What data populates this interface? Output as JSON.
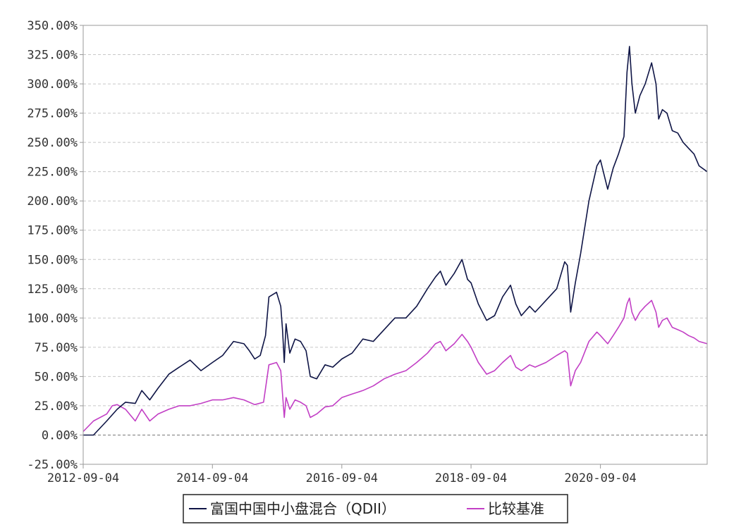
{
  "chart_data": {
    "type": "line",
    "y_ticks": [
      "-25.00%",
      "0.00%",
      "25.00%",
      "50.00%",
      "75.00%",
      "100.00%",
      "125.00%",
      "150.00%",
      "175.00%",
      "200.00%",
      "225.00%",
      "250.00%",
      "275.00%",
      "300.00%",
      "325.00%",
      "350.00%"
    ],
    "x_ticks": [
      "2012-09-04",
      "2014-09-04",
      "2016-09-04",
      "2018-09-04",
      "2020-09-04"
    ],
    "ylim": [
      -25,
      350
    ],
    "xlim": [
      "2012-09-04",
      "2022-04-30"
    ],
    "grid": "horizontal-dashed",
    "legend_position": "bottom",
    "series": [
      {
        "name": "富国中国中小盘混合（QDII）",
        "color": "#0f1546",
        "points": [
          [
            "2012-09-04",
            0
          ],
          [
            "2012-11-01",
            0
          ],
          [
            "2013-01-15",
            12
          ],
          [
            "2013-03-15",
            22
          ],
          [
            "2013-05-01",
            28
          ],
          [
            "2013-06-25",
            27
          ],
          [
            "2013-08-01",
            38
          ],
          [
            "2013-09-15",
            30
          ],
          [
            "2013-11-01",
            40
          ],
          [
            "2014-01-01",
            52
          ],
          [
            "2014-03-01",
            58
          ],
          [
            "2014-05-01",
            64
          ],
          [
            "2014-07-01",
            55
          ],
          [
            "2014-09-04",
            62
          ],
          [
            "2014-11-01",
            68
          ],
          [
            "2015-01-01",
            80
          ],
          [
            "2015-03-01",
            78
          ],
          [
            "2015-04-01",
            72
          ],
          [
            "2015-05-01",
            65
          ],
          [
            "2015-06-01",
            68
          ],
          [
            "2015-07-01",
            85
          ],
          [
            "2015-07-20",
            118
          ],
          [
            "2015-09-01",
            122
          ],
          [
            "2015-09-25",
            110
          ],
          [
            "2015-10-05",
            90
          ],
          [
            "2015-10-15",
            62
          ],
          [
            "2015-10-25",
            95
          ],
          [
            "2015-11-15",
            70
          ],
          [
            "2015-12-15",
            82
          ],
          [
            "2016-01-15",
            80
          ],
          [
            "2016-02-15",
            72
          ],
          [
            "2016-03-10",
            50
          ],
          [
            "2016-04-15",
            48
          ],
          [
            "2016-06-01",
            60
          ],
          [
            "2016-07-15",
            58
          ],
          [
            "2016-09-04",
            65
          ],
          [
            "2016-11-01",
            70
          ],
          [
            "2017-01-01",
            82
          ],
          [
            "2017-03-01",
            80
          ],
          [
            "2017-05-01",
            90
          ],
          [
            "2017-07-01",
            100
          ],
          [
            "2017-09-01",
            100
          ],
          [
            "2017-11-01",
            110
          ],
          [
            "2018-01-01",
            125
          ],
          [
            "2018-02-15",
            135
          ],
          [
            "2018-03-15",
            140
          ],
          [
            "2018-04-15",
            128
          ],
          [
            "2018-06-01",
            138
          ],
          [
            "2018-07-15",
            150
          ],
          [
            "2018-08-15",
            133
          ],
          [
            "2018-09-04",
            130
          ],
          [
            "2018-10-15",
            112
          ],
          [
            "2018-12-01",
            98
          ],
          [
            "2019-01-15",
            102
          ],
          [
            "2019-03-01",
            118
          ],
          [
            "2019-04-15",
            128
          ],
          [
            "2019-05-15",
            112
          ],
          [
            "2019-06-15",
            102
          ],
          [
            "2019-08-01",
            110
          ],
          [
            "2019-09-01",
            105
          ],
          [
            "2019-11-01",
            115
          ],
          [
            "2020-01-01",
            125
          ],
          [
            "2020-02-15",
            148
          ],
          [
            "2020-03-01",
            145
          ],
          [
            "2020-03-20",
            105
          ],
          [
            "2020-04-15",
            130
          ],
          [
            "2020-05-15",
            155
          ],
          [
            "2020-07-01",
            200
          ],
          [
            "2020-08-15",
            230
          ],
          [
            "2020-09-04",
            235
          ],
          [
            "2020-10-15",
            210
          ],
          [
            "2020-11-15",
            228
          ],
          [
            "2020-12-15",
            240
          ],
          [
            "2021-01-15",
            255
          ],
          [
            "2021-02-01",
            310
          ],
          [
            "2021-02-15",
            332
          ],
          [
            "2021-03-01",
            300
          ],
          [
            "2021-03-20",
            275
          ],
          [
            "2021-04-15",
            290
          ],
          [
            "2021-05-15",
            300
          ],
          [
            "2021-06-20",
            318
          ],
          [
            "2021-07-15",
            300
          ],
          [
            "2021-07-30",
            270
          ],
          [
            "2021-08-20",
            278
          ],
          [
            "2021-09-15",
            275
          ],
          [
            "2021-10-15",
            260
          ],
          [
            "2021-11-15",
            258
          ],
          [
            "2021-12-15",
            250
          ],
          [
            "2022-01-15",
            245
          ],
          [
            "2022-02-15",
            240
          ],
          [
            "2022-03-15",
            230
          ],
          [
            "2022-04-30",
            225
          ]
        ]
      },
      {
        "name": "比较基准",
        "color": "#c23fc5",
        "points": [
          [
            "2012-09-04",
            3
          ],
          [
            "2012-11-01",
            12
          ],
          [
            "2013-01-15",
            18
          ],
          [
            "2013-02-15",
            25
          ],
          [
            "2013-03-15",
            26
          ],
          [
            "2013-05-01",
            22
          ],
          [
            "2013-06-25",
            12
          ],
          [
            "2013-08-01",
            22
          ],
          [
            "2013-09-15",
            12
          ],
          [
            "2013-11-01",
            18
          ],
          [
            "2014-01-01",
            22
          ],
          [
            "2014-03-01",
            25
          ],
          [
            "2014-05-01",
            25
          ],
          [
            "2014-07-01",
            27
          ],
          [
            "2014-09-04",
            30
          ],
          [
            "2014-11-01",
            30
          ],
          [
            "2015-01-01",
            32
          ],
          [
            "2015-03-01",
            30
          ],
          [
            "2015-05-01",
            26
          ],
          [
            "2015-06-20",
            28
          ],
          [
            "2015-07-20",
            60
          ],
          [
            "2015-09-01",
            62
          ],
          [
            "2015-09-25",
            55
          ],
          [
            "2015-10-05",
            35
          ],
          [
            "2015-10-15",
            15
          ],
          [
            "2015-10-25",
            32
          ],
          [
            "2015-11-15",
            22
          ],
          [
            "2015-12-15",
            30
          ],
          [
            "2016-01-15",
            28
          ],
          [
            "2016-02-15",
            25
          ],
          [
            "2016-03-10",
            15
          ],
          [
            "2016-04-15",
            18
          ],
          [
            "2016-06-01",
            24
          ],
          [
            "2016-07-15",
            25
          ],
          [
            "2016-09-04",
            32
          ],
          [
            "2016-11-01",
            35
          ],
          [
            "2017-01-01",
            38
          ],
          [
            "2017-03-01",
            42
          ],
          [
            "2017-05-01",
            48
          ],
          [
            "2017-07-01",
            52
          ],
          [
            "2017-09-01",
            55
          ],
          [
            "2017-11-01",
            62
          ],
          [
            "2018-01-01",
            70
          ],
          [
            "2018-02-15",
            78
          ],
          [
            "2018-03-15",
            80
          ],
          [
            "2018-04-15",
            72
          ],
          [
            "2018-06-01",
            78
          ],
          [
            "2018-07-15",
            86
          ],
          [
            "2018-08-15",
            80
          ],
          [
            "2018-09-04",
            75
          ],
          [
            "2018-10-15",
            62
          ],
          [
            "2018-12-01",
            52
          ],
          [
            "2019-01-15",
            55
          ],
          [
            "2019-03-01",
            62
          ],
          [
            "2019-04-15",
            68
          ],
          [
            "2019-05-15",
            58
          ],
          [
            "2019-06-15",
            55
          ],
          [
            "2019-08-01",
            60
          ],
          [
            "2019-09-01",
            58
          ],
          [
            "2019-11-01",
            62
          ],
          [
            "2020-01-01",
            68
          ],
          [
            "2020-02-15",
            72
          ],
          [
            "2020-03-01",
            70
          ],
          [
            "2020-03-20",
            42
          ],
          [
            "2020-04-15",
            55
          ],
          [
            "2020-05-15",
            62
          ],
          [
            "2020-07-01",
            80
          ],
          [
            "2020-08-15",
            88
          ],
          [
            "2020-09-04",
            85
          ],
          [
            "2020-10-15",
            78
          ],
          [
            "2020-11-15",
            85
          ],
          [
            "2020-12-15",
            92
          ],
          [
            "2021-01-15",
            100
          ],
          [
            "2021-02-01",
            112
          ],
          [
            "2021-02-15",
            117
          ],
          [
            "2021-03-01",
            105
          ],
          [
            "2021-03-20",
            98
          ],
          [
            "2021-04-15",
            105
          ],
          [
            "2021-05-15",
            110
          ],
          [
            "2021-06-20",
            115
          ],
          [
            "2021-07-15",
            105
          ],
          [
            "2021-07-30",
            92
          ],
          [
            "2021-08-20",
            98
          ],
          [
            "2021-09-15",
            100
          ],
          [
            "2021-10-15",
            92
          ],
          [
            "2021-11-15",
            90
          ],
          [
            "2021-12-15",
            88
          ],
          [
            "2022-01-15",
            85
          ],
          [
            "2022-02-15",
            83
          ],
          [
            "2022-03-15",
            80
          ],
          [
            "2022-04-30",
            78
          ]
        ]
      }
    ]
  },
  "legend": {
    "fund_label": "富国中国中小盘混合（QDII）",
    "benchmark_label": "比较基准"
  }
}
